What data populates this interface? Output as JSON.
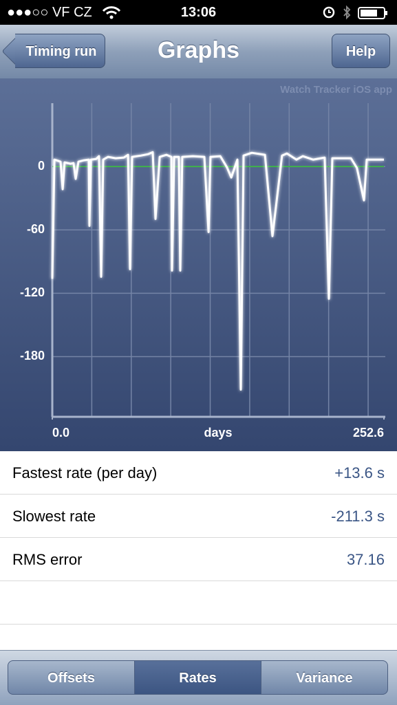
{
  "status_bar": {
    "carrier": "●●●○○ VF CZ",
    "time": "13:06"
  },
  "nav_bar": {
    "back": "Timing run",
    "title": "Graphs",
    "right": "Help"
  },
  "chart_data": {
    "type": "line",
    "watermark": "Watch Tracker iOS app",
    "xlabel": "days",
    "x": [
      0,
      1.6,
      6.3,
      7.9,
      9.4,
      14,
      16.2,
      17.8,
      19.9,
      24.1,
      27.8,
      28.3,
      29.4,
      33.5,
      35.6,
      37.2,
      38.8,
      42.5,
      48.2,
      54.5,
      57.7,
      59.2,
      60.8,
      67.6,
      72.9,
      76.5,
      78.6,
      81.8,
      87,
      90.7,
      91.2,
      92.8,
      96.4,
      97.5,
      99,
      107,
      115.8,
      119,
      120.5,
      128,
      133,
      136.3,
      141,
      143.6,
      145.7,
      152,
      162,
      167.7,
      175,
      178.7,
      186,
      190.8,
      198.6,
      207.5,
      210.7,
      213.3,
      227.5,
      232,
      237.4,
      239.5,
      252.6
    ],
    "series": [
      {
        "color": "#ffffff",
        "values": [
          -106.3,
          6.5,
          4.6,
          -21.5,
          3.9,
          2.6,
          3.3,
          -11.7,
          4.6,
          5.9,
          6.5,
          -56.1,
          6.5,
          7.2,
          9.8,
          -104.4,
          6.5,
          9.1,
          7.8,
          8.5,
          11.1,
          -97.2,
          9.1,
          10.4,
          11.7,
          13.6,
          -49.6,
          9.1,
          11.1,
          9.1,
          -98.5,
          9.1,
          9.1,
          -98.5,
          9.1,
          9.8,
          9.1,
          -62,
          9.1,
          9.8,
          -0.7,
          -10.4,
          6.5,
          -211.3,
          10.4,
          13,
          11.1,
          -65.9,
          10.4,
          12.4,
          6.5,
          9.8,
          6.5,
          8.5,
          -125.2,
          7.8,
          7.8,
          -1.3,
          -32,
          6.5,
          6.5
        ]
      }
    ],
    "xlim": [
      0,
      252.6
    ],
    "xticks": [
      {
        "value": 0,
        "label": "0.0"
      },
      252.6
    ],
    "ylim": [
      -237,
      60
    ],
    "yticks": [
      0,
      -60,
      -120,
      -180
    ],
    "grid": true,
    "reference_line": {
      "value": 0,
      "color": "#3fb24a"
    }
  },
  "table": {
    "rows": [
      [
        "Fastest rate (per day)",
        "+13.6 s"
      ],
      [
        "Slowest rate",
        "-211.3 s"
      ],
      [
        "RMS error",
        "37.16"
      ]
    ]
  },
  "tab_bar": {
    "tabs": [
      "Offsets",
      "Rates",
      "Variance"
    ],
    "selected": 1
  }
}
